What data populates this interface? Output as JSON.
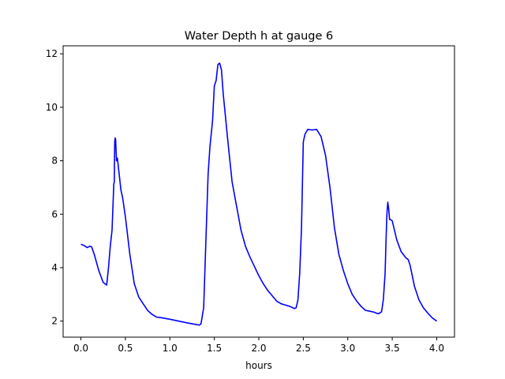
{
  "chart_data": {
    "type": "line",
    "title": "Water Depth h at gauge 6",
    "xlabel": "hours",
    "ylabel": "",
    "xlim": [
      -0.2,
      4.2
    ],
    "ylim": [
      1.4,
      12.3
    ],
    "xticks": [
      0.0,
      0.5,
      1.0,
      1.5,
      2.0,
      2.5,
      3.0,
      3.5,
      4.0
    ],
    "xtick_labels": [
      "0.0",
      "0.5",
      "1.0",
      "1.5",
      "2.0",
      "2.5",
      "3.0",
      "3.5",
      "4.0"
    ],
    "yticks": [
      2,
      4,
      6,
      8,
      10,
      12
    ],
    "ytick_labels": [
      "2",
      "4",
      "6",
      "8",
      "10",
      "12"
    ],
    "grid": false,
    "series": [
      {
        "color": "#0000ff",
        "x": [
          0.0,
          0.04,
          0.07,
          0.1,
          0.12,
          0.15,
          0.2,
          0.25,
          0.29,
          0.31,
          0.33,
          0.35,
          0.37,
          0.375,
          0.38,
          0.385,
          0.39,
          0.4,
          0.41,
          0.42,
          0.43,
          0.45,
          0.47,
          0.5,
          0.55,
          0.6,
          0.65,
          0.7,
          0.75,
          0.8,
          0.85,
          0.9,
          0.95,
          1.0,
          1.1,
          1.2,
          1.3,
          1.33,
          1.35,
          1.38,
          1.4,
          1.43,
          1.45,
          1.48,
          1.5,
          1.52,
          1.54,
          1.56,
          1.58,
          1.6,
          1.65,
          1.7,
          1.75,
          1.8,
          1.85,
          1.9,
          1.95,
          2.0,
          2.05,
          2.1,
          2.15,
          2.2,
          2.25,
          2.3,
          2.35,
          2.4,
          2.42,
          2.44,
          2.46,
          2.48,
          2.5,
          2.52,
          2.55,
          2.6,
          2.65,
          2.7,
          2.75,
          2.8,
          2.85,
          2.9,
          2.95,
          3.0,
          3.05,
          3.1,
          3.15,
          3.2,
          3.25,
          3.3,
          3.32,
          3.35,
          3.38,
          3.4,
          3.42,
          3.43,
          3.44,
          3.45,
          3.46,
          3.47,
          3.48,
          3.5,
          3.55,
          3.6,
          3.65,
          3.68,
          3.7,
          3.75,
          3.8,
          3.85,
          3.9,
          3.95,
          4.0
        ],
        "y": [
          4.88,
          4.82,
          4.75,
          4.8,
          4.78,
          4.5,
          3.9,
          3.45,
          3.35,
          4.0,
          4.8,
          5.4,
          7.15,
          7.2,
          8.7,
          8.85,
          8.8,
          8.0,
          8.1,
          7.8,
          7.5,
          6.9,
          6.6,
          5.9,
          4.5,
          3.4,
          2.9,
          2.65,
          2.4,
          2.25,
          2.15,
          2.13,
          2.1,
          2.07,
          2.0,
          1.93,
          1.87,
          1.85,
          1.9,
          2.5,
          4.5,
          7.5,
          8.5,
          9.5,
          10.8,
          11.0,
          11.6,
          11.65,
          11.4,
          10.5,
          8.8,
          7.2,
          6.3,
          5.4,
          4.8,
          4.4,
          4.05,
          3.7,
          3.4,
          3.15,
          2.95,
          2.75,
          2.65,
          2.6,
          2.55,
          2.47,
          2.5,
          2.8,
          3.8,
          5.5,
          8.7,
          9.0,
          9.17,
          9.15,
          9.17,
          8.9,
          8.2,
          7.0,
          5.5,
          4.5,
          3.9,
          3.4,
          3.0,
          2.75,
          2.55,
          2.4,
          2.37,
          2.33,
          2.3,
          2.28,
          2.35,
          2.8,
          3.8,
          5.0,
          6.0,
          6.45,
          6.2,
          5.8,
          5.8,
          5.75,
          5.05,
          4.6,
          4.38,
          4.3,
          4.1,
          3.3,
          2.8,
          2.5,
          2.3,
          2.12,
          2.0
        ]
      }
    ]
  }
}
